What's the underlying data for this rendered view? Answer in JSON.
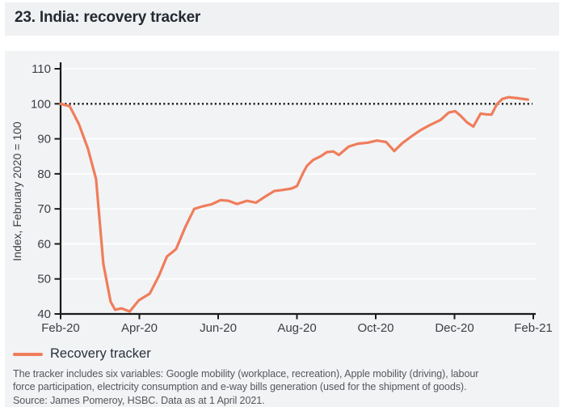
{
  "title": "23. India: recovery tracker",
  "legend": {
    "label": "Recovery tracker"
  },
  "notes": {
    "line1": "The tracker includes six variables: Google mobility (workplace, recreation), Apple mobility (driving), labour",
    "line2": "force participation, electricity consumption and e-way bills generation (used for the shipment of goods).",
    "line3": "Source: James Pomeroy, HSBC. Data as at 1 April 2021."
  },
  "colors": {
    "series": "#EF7D5B",
    "panel": "#F2F3F5",
    "title_bar": "#F0F1F3",
    "grid": "#FFFFFF",
    "axis": "#1A1A1A",
    "baseline_dotted": "#151515",
    "title_text": "#242A32",
    "tick_text": "#3C4046",
    "note_text": "#54575C"
  },
  "chart_data": {
    "type": "line",
    "title": "23. India: recovery tracker",
    "xlabel": "",
    "ylabel": "Index, February 2020 = 100",
    "ylim": [
      40,
      110
    ],
    "y_ticks": [
      40,
      50,
      60,
      70,
      80,
      90,
      100,
      110
    ],
    "x_tick_labels": [
      "Feb-20",
      "Apr-20",
      "Jun-20",
      "Aug-20",
      "Oct-20",
      "Dec-20",
      "Feb-21"
    ],
    "x_axis_unit": "weeks since Feb-2020",
    "x_weeks_total": 52,
    "baseline": 100,
    "grid": "horizontal-white-lines",
    "legend_position": "bottom-left",
    "series": [
      {
        "name": "Recovery tracker",
        "color": "#EF7D5B",
        "points": [
          [
            0,
            100
          ],
          [
            1,
            99.3
          ],
          [
            2,
            94.3
          ],
          [
            3,
            87.2
          ],
          [
            3.9,
            78.5
          ],
          [
            4.7,
            54.3
          ],
          [
            5.5,
            43.5
          ],
          [
            6,
            41.2
          ],
          [
            6.7,
            41.6
          ],
          [
            7.6,
            40.7
          ],
          [
            8.6,
            43.9
          ],
          [
            9.8,
            45.8
          ],
          [
            10.8,
            50.8
          ],
          [
            11.7,
            56.4
          ],
          [
            12.7,
            58.5
          ],
          [
            13.7,
            64.7
          ],
          [
            14.7,
            70
          ],
          [
            15.6,
            70.7
          ],
          [
            16.6,
            71.3
          ],
          [
            17.6,
            72.5
          ],
          [
            18.5,
            72.3
          ],
          [
            19.4,
            71.4
          ],
          [
            20.5,
            72.3
          ],
          [
            21.5,
            71.8
          ],
          [
            22.5,
            73.5
          ],
          [
            23.5,
            75.1
          ],
          [
            24.4,
            75.4
          ],
          [
            25.4,
            75.8
          ],
          [
            26,
            76.5
          ],
          [
            26.7,
            80.4
          ],
          [
            27.1,
            82.3
          ],
          [
            27.8,
            84
          ],
          [
            28.6,
            85
          ],
          [
            29.3,
            86.2
          ],
          [
            30,
            86.4
          ],
          [
            30.6,
            85.4
          ],
          [
            31.7,
            87.8
          ],
          [
            32.7,
            88.6
          ],
          [
            33.8,
            88.9
          ],
          [
            34.8,
            89.5
          ],
          [
            35.8,
            89.1
          ],
          [
            36.7,
            86.5
          ],
          [
            37.6,
            88.8
          ],
          [
            38.7,
            90.9
          ],
          [
            39.6,
            92.5
          ],
          [
            40.6,
            93.9
          ],
          [
            41.8,
            95.4
          ],
          [
            42.7,
            97.5
          ],
          [
            43.4,
            97.9
          ],
          [
            44,
            96.6
          ],
          [
            44.7,
            94.7
          ],
          [
            45.4,
            93.5
          ],
          [
            46.2,
            97.2
          ],
          [
            46.8,
            97
          ],
          [
            47.4,
            96.9
          ],
          [
            48,
            99.9
          ],
          [
            48.6,
            101.4
          ],
          [
            49.3,
            101.9
          ],
          [
            50.3,
            101.6
          ],
          [
            51.4,
            101.2
          ]
        ]
      }
    ]
  }
}
